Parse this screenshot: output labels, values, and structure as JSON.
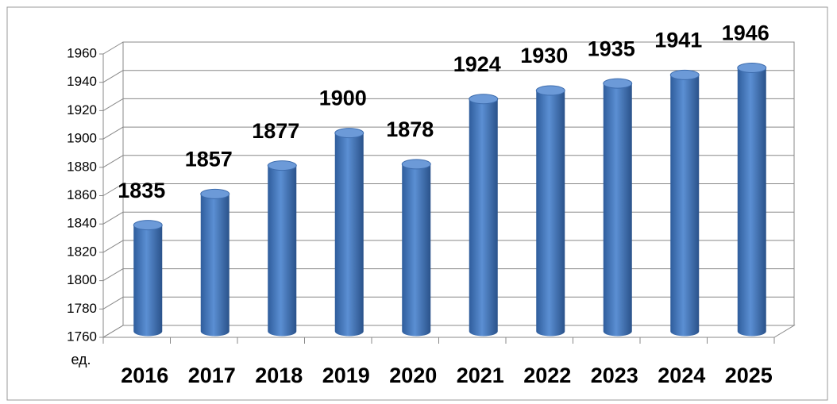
{
  "chart_data": {
    "type": "bar3d",
    "ylabel": "ед.",
    "categories": [
      "2016",
      "2017",
      "2018",
      "2019",
      "2020",
      "2021",
      "2022",
      "2023",
      "2024",
      "2025"
    ],
    "values": [
      1835,
      1857,
      1877,
      1900,
      1878,
      1924,
      1930,
      1935,
      1941,
      1946
    ],
    "color": "#4a7ec4",
    "ylim": [
      1760,
      1960
    ],
    "yticks": [
      1760,
      1780,
      1800,
      1820,
      1840,
      1860,
      1880,
      1900,
      1920,
      1940,
      1960
    ],
    "grid": true
  }
}
